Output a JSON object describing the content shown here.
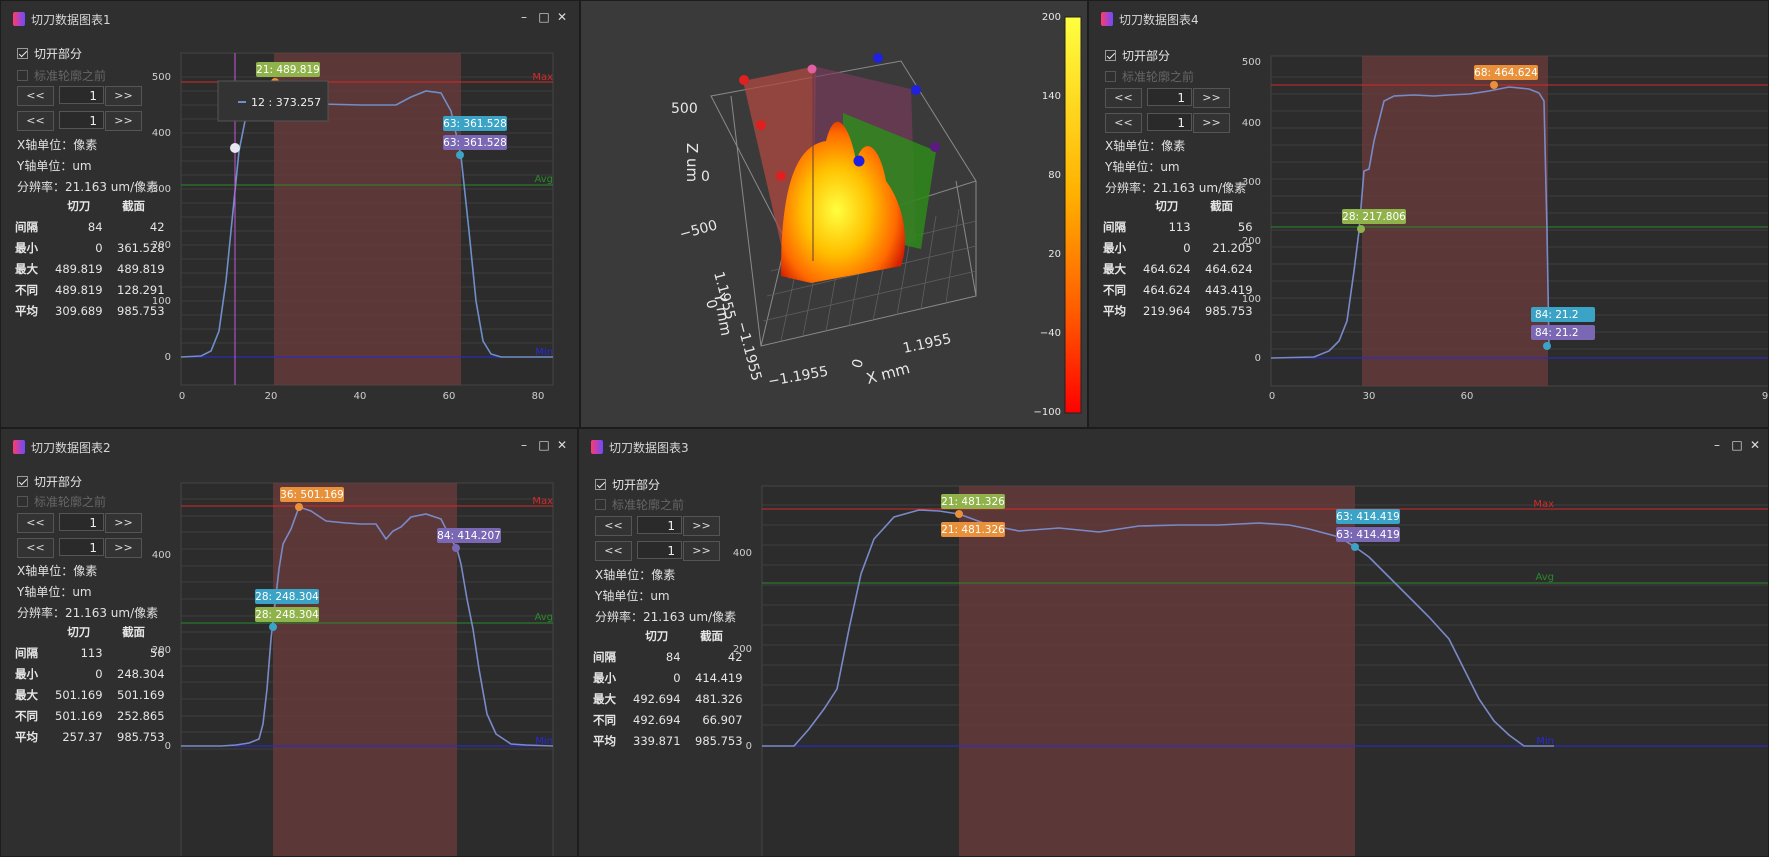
{
  "windows": [
    {
      "title": "切刀数据图表1",
      "cb_open": "切开部分",
      "cb_standard": "标准轮廓之前",
      "prev": "<<",
      "next": ">>",
      "page1": "1",
      "page2": "1",
      "x_unit": "X轴单位：像素",
      "y_unit": "Y轴单位：um",
      "resolution": "分辨率：21.163 um/像素",
      "col_headers": [
        "切刀",
        "截面"
      ],
      "rows": [
        {
          "label": "间隔",
          "a": "84",
          "b": "42"
        },
        {
          "label": "最小",
          "a": "0",
          "b": "361.528"
        },
        {
          "label": "最大",
          "a": "489.819",
          "b": "489.819"
        },
        {
          "label": "不同",
          "a": "489.819",
          "b": "128.291"
        },
        {
          "label": "平均",
          "a": "309.689",
          "b": "985.753"
        }
      ],
      "chart": {
        "yticks": [
          "500",
          "400",
          "300",
          "200",
          "100",
          "0"
        ],
        "xticks": [
          "0",
          "20",
          "40",
          "60",
          "80"
        ],
        "max_label": "Max",
        "avg_label": "Avg",
        "min_label": "Min",
        "labels": [
          {
            "text": "21: 489.819",
            "color": "#8fb34a"
          },
          {
            "text": "63: 361.528",
            "color": "#3ba3c5"
          },
          {
            "text": "63: 361.528",
            "color": "#7b68b5"
          }
        ],
        "tooltip": "12 : 373.257"
      }
    },
    {
      "title": "切刀数据图表2",
      "cb_open": "切开部分",
      "cb_standard": "标准轮廓之前",
      "prev": "<<",
      "next": ">>",
      "page1": "1",
      "page2": "1",
      "x_unit": "X轴单位：像素",
      "y_unit": "Y轴单位：um",
      "resolution": "分辨率：21.163 um/像素",
      "col_headers": [
        "切刀",
        "截面"
      ],
      "rows": [
        {
          "label": "间隔",
          "a": "113",
          "b": "56"
        },
        {
          "label": "最小",
          "a": "0",
          "b": "248.304"
        },
        {
          "label": "最大",
          "a": "501.169",
          "b": "501.169"
        },
        {
          "label": "不同",
          "a": "501.169",
          "b": "252.865"
        },
        {
          "label": "平均",
          "a": "257.37",
          "b": "985.753"
        }
      ],
      "chart": {
        "yticks": [
          "400",
          "200",
          "0"
        ],
        "max_label": "Max",
        "avg_label": "Avg",
        "min_label": "Min",
        "labels": [
          {
            "text": "36: 501.169",
            "color": "#e8903a"
          },
          {
            "text": "84: 414.207",
            "color": "#7b68b5"
          },
          {
            "text": "28: 248.304",
            "color": "#3ba3c5"
          },
          {
            "text": "28: 248.304",
            "color": "#8fb34a"
          }
        ]
      }
    },
    {
      "title": "切刀数据图表3",
      "cb_open": "切开部分",
      "cb_standard": "标准轮廓之前",
      "prev": "<<",
      "next": ">>",
      "page1": "1",
      "page2": "1",
      "x_unit": "X轴单位：像素",
      "y_unit": "Y轴单位：um",
      "resolution": "分辨率：21.163 um/像素",
      "col_headers": [
        "切刀",
        "截面"
      ],
      "rows": [
        {
          "label": "间隔",
          "a": "84",
          "b": "42"
        },
        {
          "label": "最小",
          "a": "0",
          "b": "414.419"
        },
        {
          "label": "最大",
          "a": "492.694",
          "b": "481.326"
        },
        {
          "label": "不同",
          "a": "492.694",
          "b": "66.907"
        },
        {
          "label": "平均",
          "a": "339.871",
          "b": "985.753"
        }
      ],
      "chart": {
        "yticks": [
          "400",
          "200",
          "0"
        ],
        "max_label": "Max",
        "avg_label": "Avg",
        "min_label": "Min",
        "labels": [
          {
            "text": "21: 481.326",
            "color": "#8fb34a"
          },
          {
            "text": "21: 481.326",
            "color": "#e8903a"
          },
          {
            "text": "63: 414.419",
            "color": "#3ba3c5"
          },
          {
            "text": "63: 414.419",
            "color": "#7b68b5"
          }
        ]
      }
    },
    {
      "title": "切刀数据图表4",
      "cb_open": "切开部分",
      "cb_standard": "标准轮廓之前",
      "prev": "<<",
      "next": ">>",
      "page1": "1",
      "page2": "1",
      "x_unit": "X轴单位：像素",
      "y_unit": "Y轴单位：um",
      "resolution": "分辨率：21.163 um/像素",
      "col_headers": [
        "切刀",
        "截面"
      ],
      "rows": [
        {
          "label": "间隔",
          "a": "113",
          "b": "56"
        },
        {
          "label": "最小",
          "a": "0",
          "b": "21.205"
        },
        {
          "label": "最大",
          "a": "464.624",
          "b": "464.624"
        },
        {
          "label": "不同",
          "a": "464.624",
          "b": "443.419"
        },
        {
          "label": "平均",
          "a": "219.964",
          "b": "985.753"
        }
      ],
      "chart": {
        "yticks": [
          "500",
          "400",
          "300",
          "200",
          "100",
          "0"
        ],
        "xticks": [
          "0",
          "30",
          "60",
          "9"
        ],
        "labels": [
          {
            "text": "68: 464.624",
            "color": "#e8903a"
          },
          {
            "text": "28: 217.806",
            "color": "#8fb34a"
          },
          {
            "text": "84: 21.2",
            "color": "#3ba3c5"
          },
          {
            "text": "84: 21.2",
            "color": "#7b68b5"
          }
        ]
      }
    }
  ],
  "plot3d": {
    "z_label": "Z  um",
    "y_label": "Y  mm",
    "x_label": "X  mm",
    "z_ticks": [
      "500",
      "0",
      "−500"
    ],
    "y_ticks": [
      "1.1955",
      "0",
      "−1.1955"
    ],
    "x_ticks": [
      "−1.1955",
      "0",
      "1.1955"
    ],
    "colorbar_ticks": [
      "200",
      "140",
      "80",
      "20",
      "−40",
      "−100"
    ]
  },
  "colors": {
    "max_line": "#d42a2a",
    "avg_line": "#2a8a2a",
    "min_line": "#2a2ad4",
    "curve": "#6e8fc8",
    "band": "#6b3b3b"
  }
}
